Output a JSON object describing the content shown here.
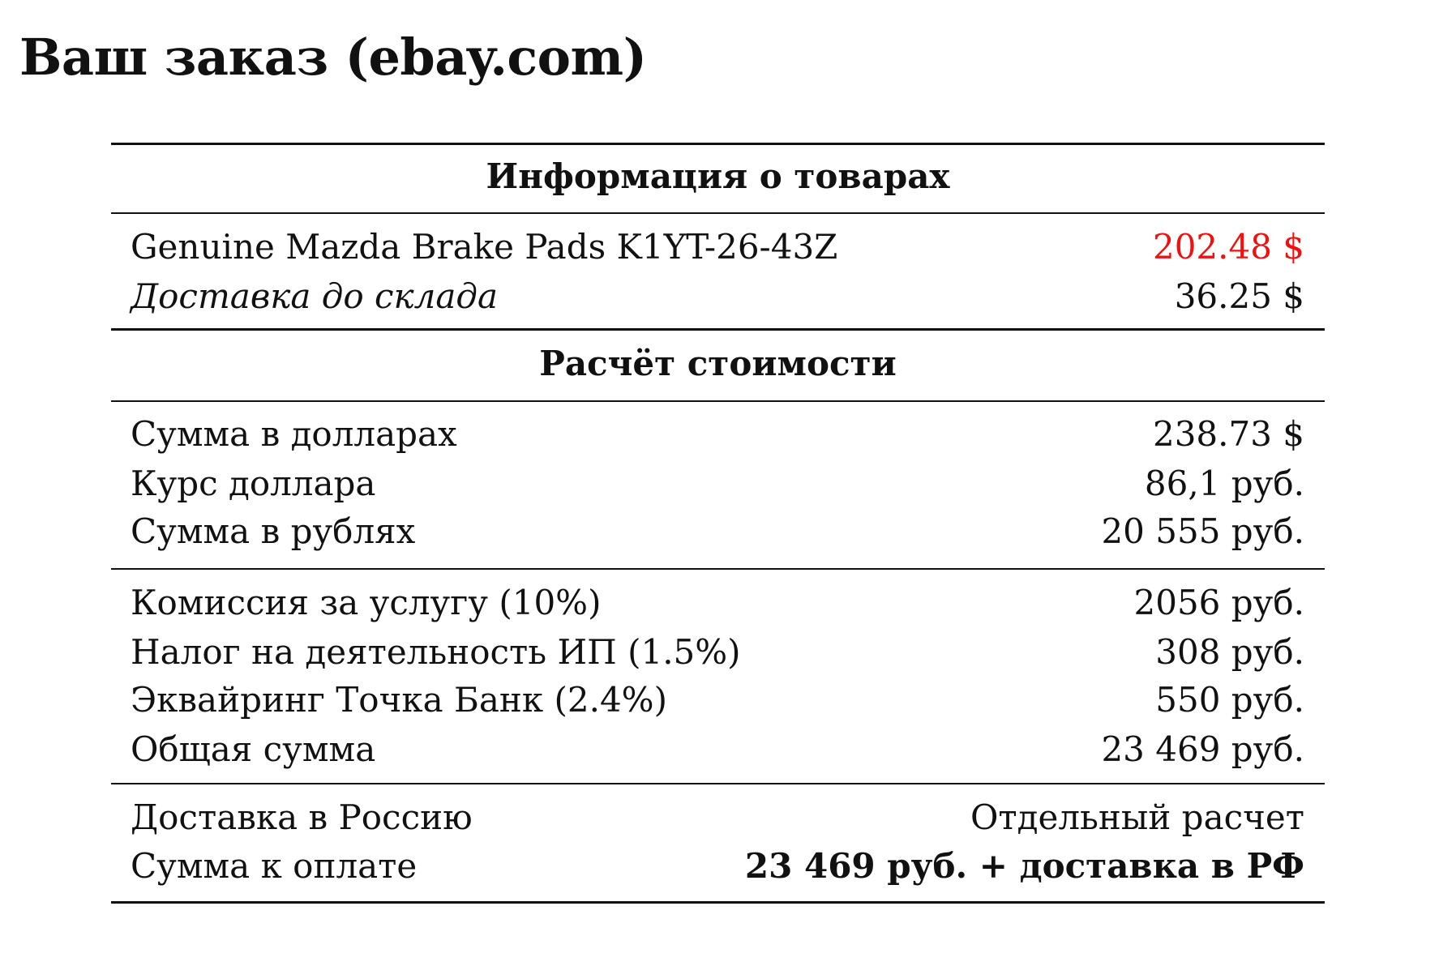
{
  "title": "Ваш заказ (ebay.com)",
  "sections": {
    "items_heading": "Информация о товарах",
    "calc_heading": "Расчёт стоимости"
  },
  "items": [
    {
      "label": "Genuine Mazda Brake Pads K1YT-26-43Z",
      "value": "202.48 $",
      "value_color": "#ee1111"
    },
    {
      "label": "Доставка до склада",
      "value": "36.25 $"
    }
  ],
  "calc": [
    {
      "label": "Сумма в долларах",
      "value": "238.73 $"
    },
    {
      "label": "Курс доллара",
      "value": "86,1 руб."
    },
    {
      "label": "Сумма в рублях",
      "value": "20 555 руб."
    }
  ],
  "fees": [
    {
      "label": "Комиссия за услугу (10%)",
      "value": "2056 руб."
    },
    {
      "label": "Налог на деятельность ИП (1.5%)",
      "value": "308 руб."
    },
    {
      "label": "Эквайринг Точка Банк (2.4%)",
      "value": "550 руб."
    },
    {
      "label": "Общая сумма",
      "value": "23 469 руб."
    }
  ],
  "final": [
    {
      "label": "Доставка в Россию",
      "value": "Отдельный расчет"
    },
    {
      "label": "Сумма к оплате",
      "value": "23 469 руб. + доставка в РФ"
    }
  ]
}
